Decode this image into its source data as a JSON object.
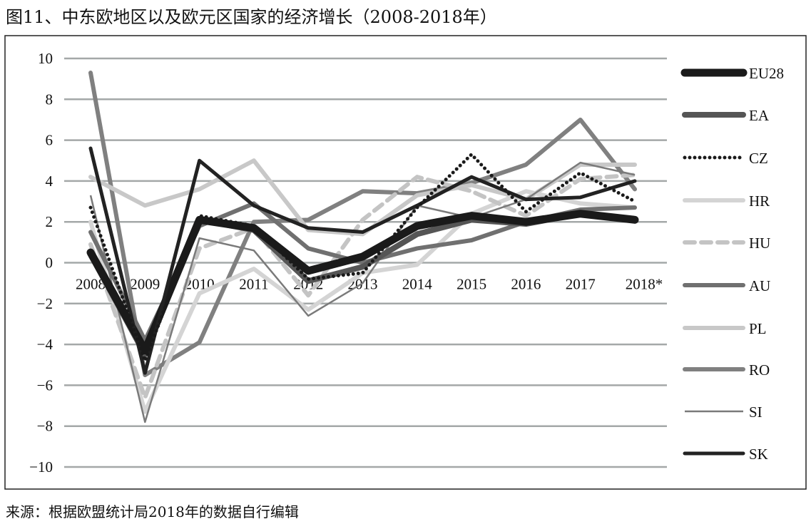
{
  "chart_data": {
    "type": "line",
    "title": "图11、中东欧地区以及欧元区国家的经济增长（2008-2018年）",
    "source": "来源：根据欧盟统计局2018年的数据自行编辑",
    "xlabel": "",
    "ylabel": "",
    "ylim": [
      -10,
      10
    ],
    "yticks": [
      "10",
      "8",
      "6",
      "4",
      "2",
      "0",
      "−2",
      "−4",
      "−6",
      "−8",
      "−10"
    ],
    "ytick_values": [
      10,
      8,
      6,
      4,
      2,
      0,
      -2,
      -4,
      -6,
      -8,
      -10
    ],
    "categories": [
      "2008",
      "2009",
      "2010",
      "2011",
      "2012",
      "2013",
      "2014",
      "2015",
      "2016",
      "2017",
      "2018*"
    ],
    "grid": true,
    "legend_position": "right",
    "series": [
      {
        "name": "EU28",
        "color": "#1a1a1a",
        "style": "thick",
        "values": [
          0.5,
          -4.3,
          2.1,
          1.7,
          -0.4,
          0.3,
          1.8,
          2.3,
          2.0,
          2.4,
          2.1
        ]
      },
      {
        "name": "EA",
        "color": "#555555",
        "style": "thick",
        "values": [
          0.4,
          -4.5,
          2.1,
          1.6,
          -0.9,
          -0.2,
          1.4,
          2.1,
          1.9,
          2.4,
          2.1
        ]
      },
      {
        "name": "CZ",
        "color": "#1a1a1a",
        "style": "dotted",
        "values": [
          2.7,
          -4.8,
          2.3,
          1.8,
          -0.8,
          -0.5,
          2.7,
          5.3,
          2.5,
          4.4,
          3.0
        ]
      },
      {
        "name": "HR",
        "color": "#d4d4d4",
        "style": "solid",
        "values": [
          2.0,
          -7.3,
          -1.5,
          -0.3,
          -2.3,
          -0.5,
          -0.1,
          2.4,
          3.5,
          2.9,
          2.7
        ]
      },
      {
        "name": "HU",
        "color": "#c4c4c4",
        "style": "dashed",
        "values": [
          0.9,
          -6.6,
          0.7,
          1.7,
          -1.6,
          2.1,
          4.2,
          3.5,
          2.3,
          4.1,
          4.3
        ]
      },
      {
        "name": "AU",
        "color": "#707070",
        "style": "solid",
        "values": [
          1.5,
          -3.8,
          1.8,
          2.9,
          0.7,
          0.0,
          0.7,
          1.1,
          2.0,
          2.6,
          2.7
        ]
      },
      {
        "name": "PL",
        "color": "#c8c8c8",
        "style": "solid",
        "values": [
          4.2,
          2.8,
          3.6,
          5.0,
          1.6,
          1.4,
          3.3,
          3.8,
          3.1,
          4.8,
          4.8
        ]
      },
      {
        "name": "RO",
        "color": "#808080",
        "style": "solid",
        "values": [
          9.3,
          -5.5,
          -3.9,
          2.0,
          2.1,
          3.5,
          3.4,
          3.9,
          4.8,
          7.0,
          3.6
        ]
      },
      {
        "name": "SI",
        "color": "#7a7a7a",
        "style": "thin",
        "values": [
          3.3,
          -7.8,
          1.2,
          0.6,
          -2.6,
          -1.0,
          2.8,
          2.2,
          3.1,
          4.9,
          4.3
        ]
      },
      {
        "name": "SK",
        "color": "#222222",
        "style": "solid",
        "values": [
          5.6,
          -5.4,
          5.0,
          2.8,
          1.7,
          1.5,
          2.8,
          4.2,
          3.1,
          3.2,
          4.0
        ]
      }
    ]
  }
}
